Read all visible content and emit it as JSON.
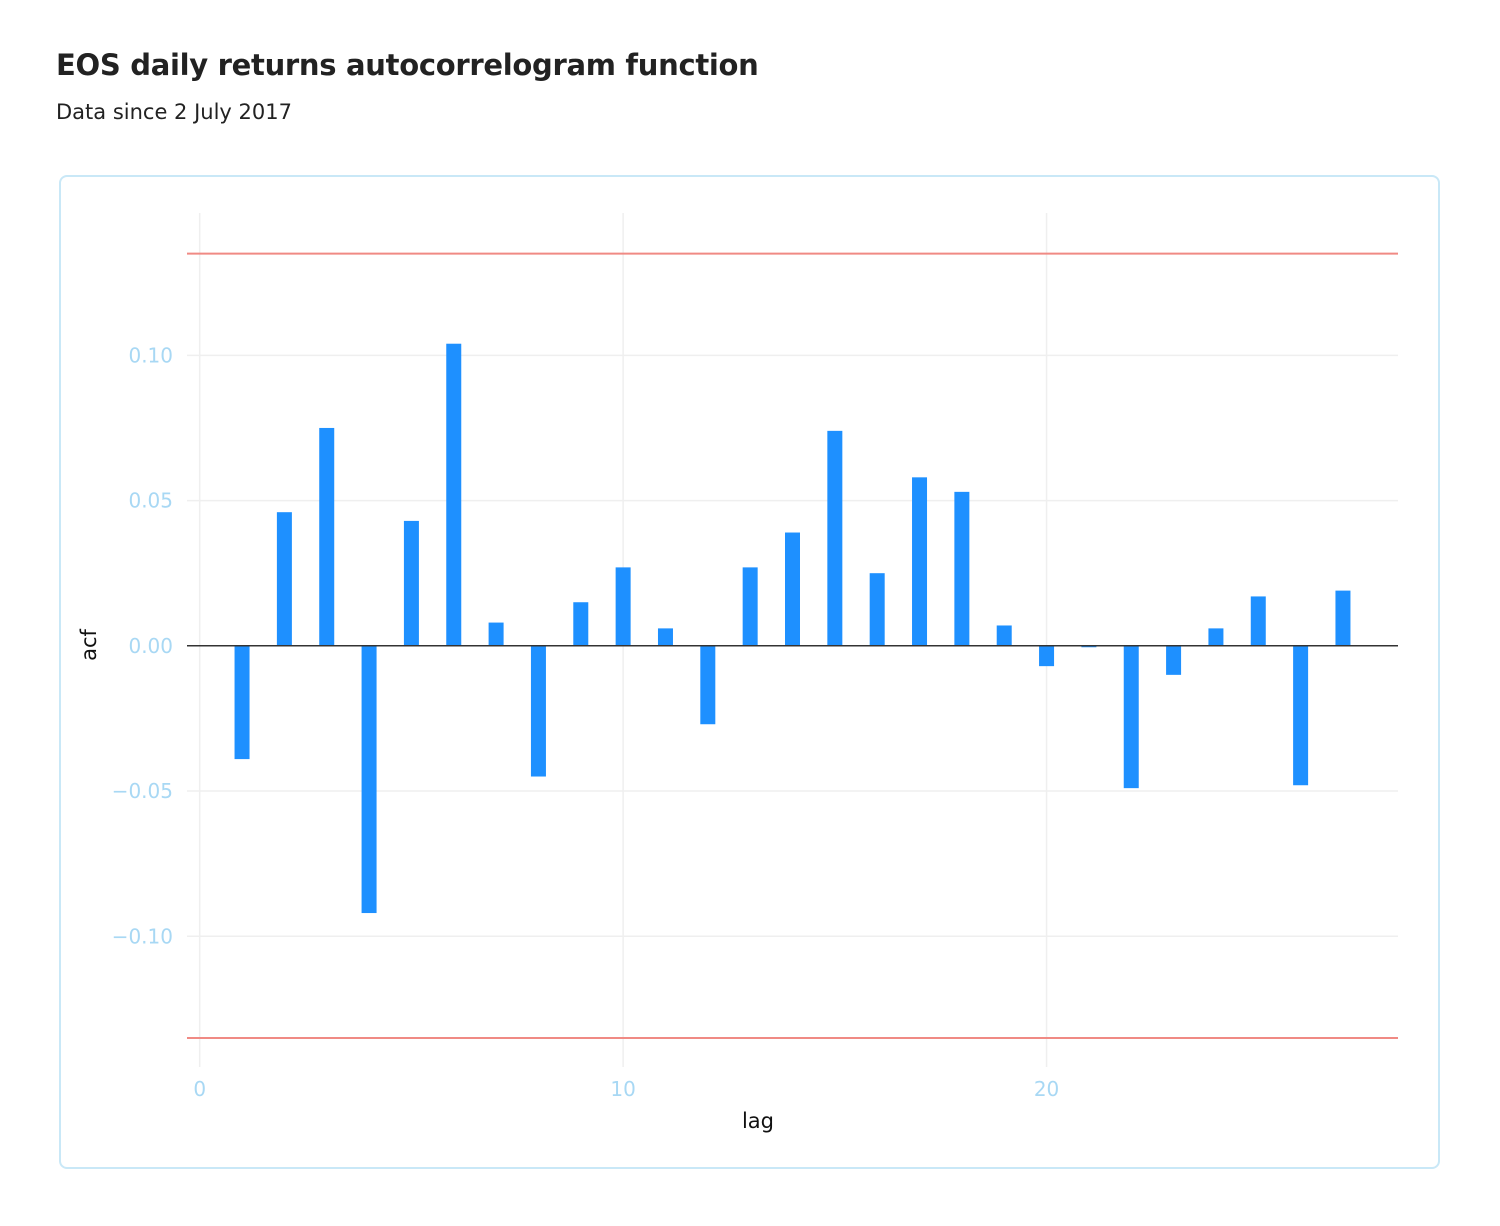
{
  "chart_data": {
    "type": "bar",
    "title": "EOS daily returns autocorrelogram function",
    "subtitle": "Data since 2 July 2017",
    "xlabel": "lag",
    "ylabel": "acf",
    "x_ticks": [
      "0",
      "10",
      "20"
    ],
    "y_ticks": [
      "0.10",
      "0.05",
      "0.00",
      "−0.05",
      "−0.10"
    ],
    "xlim": [
      -0.3,
      28.3
    ],
    "ylim": [
      -0.145,
      0.149
    ],
    "confidence_bound": 0.135,
    "x": [
      1,
      2,
      3,
      4,
      5,
      6,
      7,
      8,
      9,
      10,
      11,
      12,
      13,
      14,
      15,
      16,
      17,
      18,
      19,
      20,
      21,
      22,
      23,
      24,
      25,
      26,
      27
    ],
    "values": [
      -0.039,
      0.046,
      0.075,
      -0.092,
      0.043,
      0.104,
      0.008,
      -0.045,
      0.015,
      0.027,
      0.006,
      -0.027,
      0.027,
      0.039,
      0.074,
      0.025,
      0.058,
      0.053,
      0.007,
      -0.007,
      -0.0005,
      -0.049,
      -0.01,
      0.006,
      0.017,
      -0.048,
      0.019
    ],
    "bar_color": "#1e90ff",
    "bound_color": "#f08a84",
    "zero_line_color": "#333333",
    "grid": true
  }
}
